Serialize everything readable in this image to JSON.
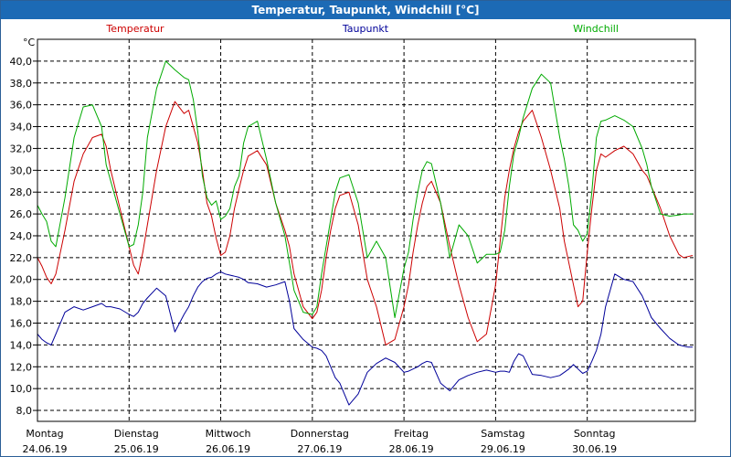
{
  "window": {
    "title": "Temperatur, Taupunkt, Windchill [°C]"
  },
  "chart_data": {
    "type": "line",
    "title": "Temperatur, Taupunkt, Windchill [°C]",
    "ylabel": "°C",
    "ylim": [
      7,
      42
    ],
    "yticks": [
      8,
      10,
      12,
      14,
      16,
      18,
      20,
      22,
      24,
      26,
      28,
      30,
      32,
      34,
      36,
      38,
      40
    ],
    "ytick_labels": [
      "8,0",
      "10,0",
      "12,0",
      "14,0",
      "16,0",
      "18,0",
      "20,0",
      "22,0",
      "24,0",
      "26,0",
      "28,0",
      "30,0",
      "32,0",
      "34,0",
      "36,0",
      "38,0",
      "40,0"
    ],
    "xlim": [
      0,
      7.18
    ],
    "x_categories": [
      {
        "day": "Montag",
        "date": "24.06.19"
      },
      {
        "day": "Dienstag",
        "date": "25.06.19"
      },
      {
        "day": "Mittwoch",
        "date": "26.06.19"
      },
      {
        "day": "Donnerstag",
        "date": "27.06.19"
      },
      {
        "day": "Freitag",
        "date": "28.06.19"
      },
      {
        "day": "Samstag",
        "date": "29.06.19"
      },
      {
        "day": "Sonntag",
        "date": "30.06.19"
      }
    ],
    "grid": true,
    "series": [
      {
        "name": "Temperatur",
        "color": "#cc0000",
        "x": [
          0,
          0.05,
          0.1,
          0.15,
          0.2,
          0.3,
          0.4,
          0.5,
          0.6,
          0.7,
          0.75,
          0.8,
          0.9,
          1.0,
          1.05,
          1.1,
          1.15,
          1.2,
          1.3,
          1.4,
          1.5,
          1.6,
          1.65,
          1.7,
          1.75,
          1.8,
          1.85,
          1.9,
          1.95,
          2.0,
          2.05,
          2.1,
          2.15,
          2.2,
          2.25,
          2.3,
          2.4,
          2.5,
          2.6,
          2.7,
          2.75,
          2.8,
          2.9,
          3.0,
          3.05,
          3.1,
          3.15,
          3.2,
          3.25,
          3.3,
          3.4,
          3.5,
          3.6,
          3.7,
          3.8,
          3.9,
          4.0,
          4.05,
          4.1,
          4.15,
          4.2,
          4.25,
          4.3,
          4.4,
          4.5,
          4.6,
          4.7,
          4.8,
          4.9,
          5.0,
          5.05,
          5.1,
          5.15,
          5.2,
          5.25,
          5.3,
          5.4,
          5.5,
          5.6,
          5.7,
          5.75,
          5.8,
          5.85,
          5.9,
          5.95,
          6.0,
          6.05,
          6.1,
          6.15,
          6.2,
          6.3,
          6.4,
          6.5,
          6.6,
          6.65,
          6.7,
          6.8,
          6.9,
          7.0,
          7.05,
          7.1,
          7.15
        ],
        "values": [
          22.0,
          21.2,
          20.2,
          19.6,
          20.5,
          24.5,
          29.0,
          31.5,
          33.0,
          33.3,
          32.2,
          30.0,
          26.5,
          23.0,
          21.3,
          20.5,
          22.5,
          25.0,
          30.0,
          34.0,
          36.3,
          35.2,
          35.5,
          34.0,
          32.5,
          30.0,
          27.0,
          25.8,
          23.8,
          22.2,
          22.5,
          24.0,
          26.5,
          28.3,
          30.0,
          31.3,
          31.8,
          30.5,
          27.0,
          24.5,
          23.0,
          20.5,
          17.5,
          16.4,
          17.0,
          19.0,
          22.0,
          24.5,
          26.5,
          27.7,
          28.0,
          25.0,
          20.0,
          17.5,
          14.0,
          14.5,
          17.5,
          19.5,
          22.5,
          25.0,
          27.0,
          28.5,
          29.0,
          27.0,
          23.0,
          19.5,
          16.5,
          14.3,
          15.0,
          19.5,
          23.5,
          27.5,
          30.0,
          32.0,
          33.5,
          34.5,
          35.5,
          33.0,
          30.0,
          26.5,
          23.5,
          21.5,
          19.5,
          17.5,
          18.0,
          22.5,
          26.5,
          30.0,
          31.5,
          31.2,
          31.8,
          32.2,
          31.5,
          30.0,
          29.5,
          28.5,
          26.5,
          24.0,
          22.3,
          22.0,
          22.1,
          22.2
        ]
      },
      {
        "name": "Taupunkt",
        "color": "#000099",
        "x": [
          0,
          0.05,
          0.1,
          0.15,
          0.2,
          0.3,
          0.4,
          0.5,
          0.6,
          0.7,
          0.75,
          0.8,
          0.9,
          1.0,
          1.05,
          1.1,
          1.15,
          1.2,
          1.3,
          1.4,
          1.5,
          1.6,
          1.65,
          1.7,
          1.75,
          1.8,
          1.85,
          1.9,
          1.95,
          2.0,
          2.05,
          2.1,
          2.15,
          2.2,
          2.25,
          2.3,
          2.4,
          2.5,
          2.6,
          2.7,
          2.75,
          2.8,
          2.9,
          3.0,
          3.05,
          3.1,
          3.15,
          3.2,
          3.25,
          3.3,
          3.4,
          3.5,
          3.6,
          3.7,
          3.8,
          3.9,
          4.0,
          4.05,
          4.1,
          4.15,
          4.2,
          4.25,
          4.3,
          4.4,
          4.5,
          4.6,
          4.7,
          4.8,
          4.9,
          5.0,
          5.05,
          5.1,
          5.15,
          5.2,
          5.25,
          5.3,
          5.4,
          5.5,
          5.6,
          5.7,
          5.75,
          5.8,
          5.85,
          5.9,
          5.95,
          6.0,
          6.05,
          6.1,
          6.15,
          6.2,
          6.3,
          6.4,
          6.5,
          6.6,
          6.65,
          6.7,
          6.8,
          6.9,
          7.0,
          7.05,
          7.1,
          7.15
        ],
        "values": [
          15.0,
          14.5,
          14.2,
          14.0,
          15.0,
          17.0,
          17.5,
          17.2,
          17.5,
          17.8,
          17.5,
          17.5,
          17.3,
          16.8,
          16.6,
          17.0,
          17.8,
          18.3,
          19.2,
          18.5,
          15.2,
          16.8,
          17.5,
          18.5,
          19.3,
          19.8,
          20.1,
          20.2,
          20.5,
          20.7,
          20.5,
          20.4,
          20.3,
          20.2,
          20.0,
          19.7,
          19.6,
          19.3,
          19.5,
          19.8,
          18.0,
          15.5,
          14.5,
          13.8,
          13.7,
          13.5,
          13.0,
          12.0,
          11.0,
          10.5,
          8.5,
          9.5,
          11.5,
          12.3,
          12.8,
          12.4,
          11.5,
          11.6,
          11.8,
          12.0,
          12.3,
          12.5,
          12.4,
          10.5,
          9.8,
          10.8,
          11.2,
          11.5,
          11.7,
          11.5,
          11.6,
          11.6,
          11.5,
          12.5,
          13.2,
          13.0,
          11.3,
          11.2,
          11.0,
          11.2,
          11.5,
          11.8,
          12.2,
          11.8,
          11.4,
          11.6,
          12.5,
          13.5,
          15.0,
          17.5,
          20.5,
          20.0,
          19.8,
          18.5,
          17.5,
          16.5,
          15.5,
          14.6,
          14.0,
          13.9,
          13.8,
          13.8
        ]
      },
      {
        "name": "Windchill",
        "color": "#00aa00",
        "x": [
          0,
          0.05,
          0.1,
          0.15,
          0.2,
          0.3,
          0.4,
          0.5,
          0.6,
          0.7,
          0.75,
          0.8,
          0.9,
          1.0,
          1.05,
          1.1,
          1.15,
          1.2,
          1.3,
          1.4,
          1.5,
          1.6,
          1.65,
          1.7,
          1.75,
          1.8,
          1.85,
          1.9,
          1.95,
          2.0,
          2.05,
          2.1,
          2.15,
          2.2,
          2.25,
          2.3,
          2.4,
          2.5,
          2.6,
          2.7,
          2.75,
          2.8,
          2.9,
          3.0,
          3.05,
          3.1,
          3.15,
          3.2,
          3.25,
          3.3,
          3.4,
          3.5,
          3.6,
          3.7,
          3.8,
          3.9,
          4.0,
          4.05,
          4.1,
          4.15,
          4.2,
          4.25,
          4.3,
          4.4,
          4.5,
          4.6,
          4.7,
          4.8,
          4.9,
          5.0,
          5.05,
          5.1,
          5.15,
          5.2,
          5.25,
          5.3,
          5.4,
          5.5,
          5.6,
          5.7,
          5.75,
          5.8,
          5.85,
          5.9,
          5.95,
          6.0,
          6.05,
          6.1,
          6.15,
          6.2,
          6.3,
          6.4,
          6.5,
          6.6,
          6.65,
          6.7,
          6.8,
          6.9,
          7.0,
          7.05,
          7.1,
          7.15
        ],
        "values": [
          26.8,
          26.0,
          25.3,
          23.5,
          23.0,
          27.5,
          33.0,
          35.8,
          36.0,
          34.0,
          30.5,
          29.0,
          26.0,
          23.0,
          23.2,
          25.0,
          28.0,
          33.0,
          37.5,
          40.0,
          39.2,
          38.5,
          38.3,
          36.5,
          33.5,
          29.5,
          27.5,
          26.8,
          27.2,
          25.5,
          25.8,
          26.5,
          28.5,
          29.5,
          32.5,
          34.0,
          34.5,
          31.0,
          27.0,
          24.0,
          21.5,
          19.0,
          17.0,
          16.8,
          17.5,
          20.5,
          23.0,
          25.5,
          28.0,
          29.3,
          29.6,
          27.0,
          22.0,
          23.5,
          22.0,
          16.5,
          21.0,
          22.5,
          25.5,
          28.0,
          30.0,
          30.8,
          30.6,
          27.0,
          22.0,
          25.0,
          24.0,
          21.5,
          22.3,
          22.3,
          22.5,
          24.5,
          28.5,
          31.5,
          33.0,
          34.8,
          37.5,
          38.8,
          38.0,
          33.0,
          31.0,
          28.5,
          25.0,
          24.5,
          23.5,
          24.2,
          28.0,
          33.0,
          34.5,
          34.6,
          35.0,
          34.6,
          34.0,
          32.0,
          30.5,
          28.5,
          26.0,
          25.8,
          25.9,
          26.0,
          26.0,
          26.0
        ]
      }
    ]
  }
}
